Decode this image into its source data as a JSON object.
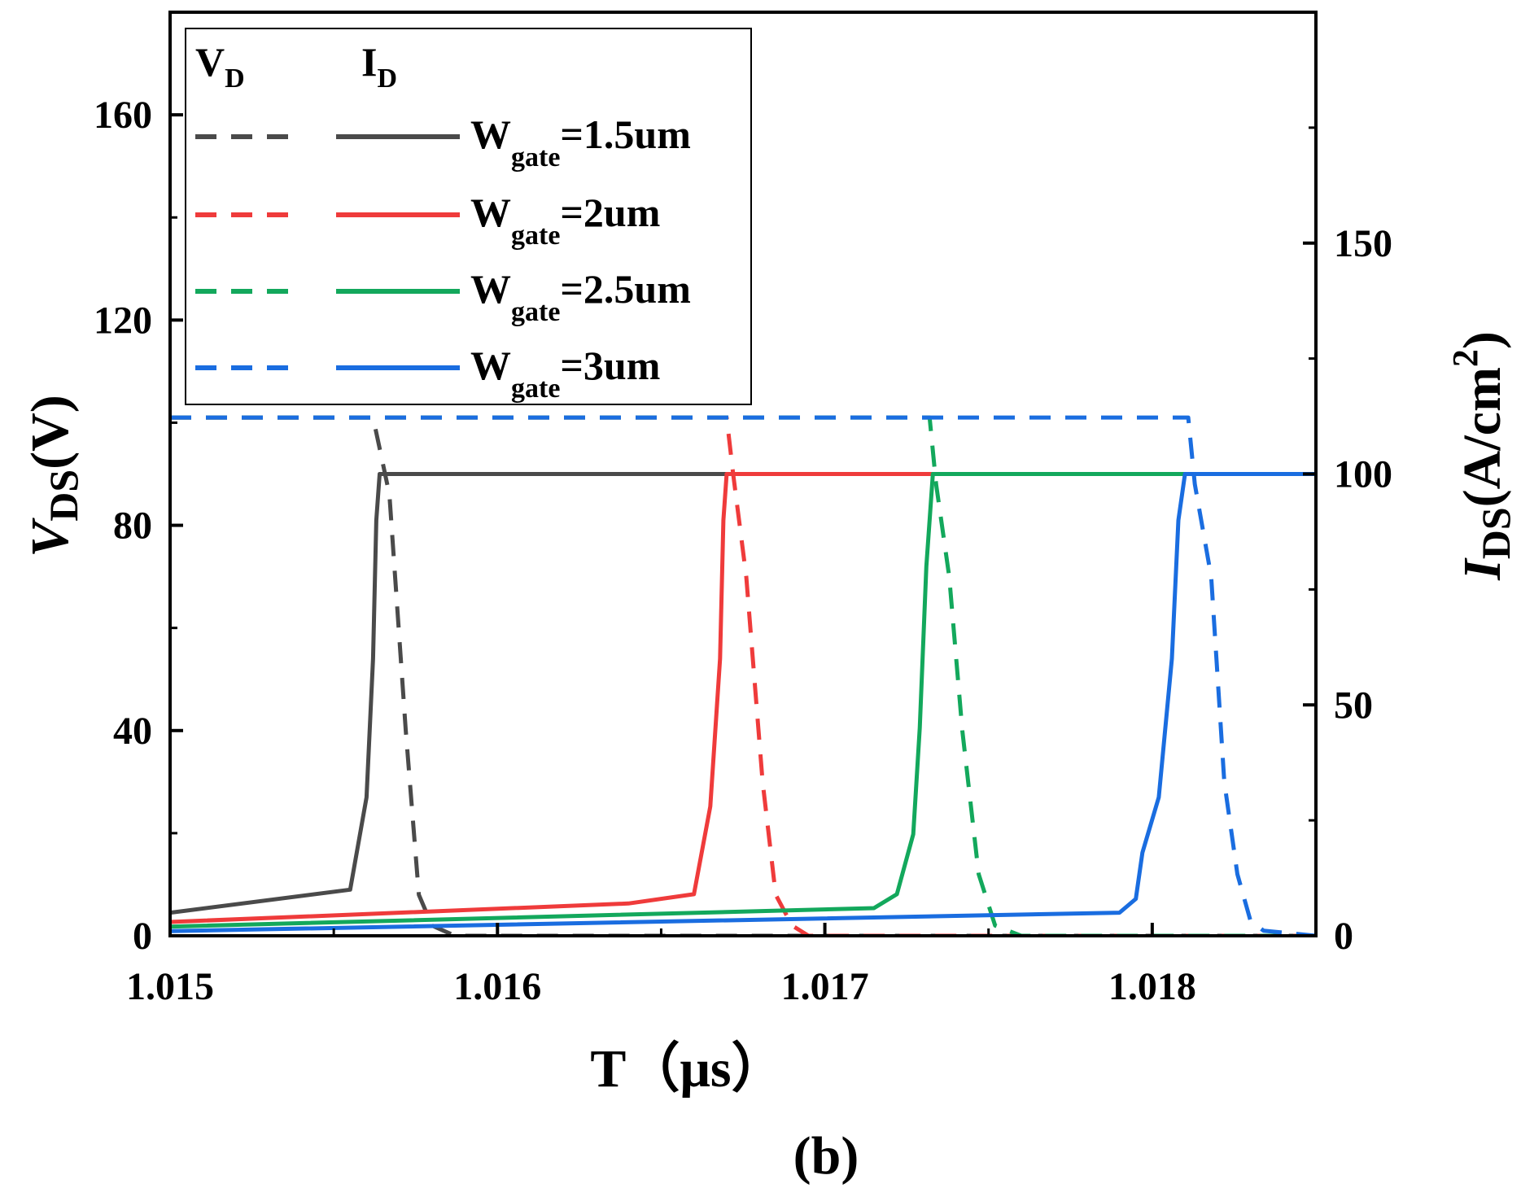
{
  "chart_data": {
    "type": "line",
    "subtitle_label": "(b)",
    "x_axis": {
      "label_main": "T",
      "label_unit": "（μs）",
      "range": [
        1.015,
        1.0185
      ],
      "ticks": [
        1.015,
        1.016,
        1.017,
        1.018
      ],
      "tick_labels": [
        "1.015",
        "1.016",
        "1.017",
        "1.018"
      ]
    },
    "y_left": {
      "label_italic": "V",
      "label_sub": "DS",
      "label_unit": "(V)",
      "range": [
        0,
        180
      ],
      "ticks": [
        0,
        40,
        80,
        120,
        160
      ],
      "tick_labels": [
        "0",
        "40",
        "80",
        "120",
        "160"
      ]
    },
    "y_right": {
      "label_italic": "I",
      "label_sub": "DS",
      "label_unit": "(A/cm",
      "label_sup": "2",
      "label_close": ")",
      "range": [
        0,
        200
      ],
      "ticks": [
        0,
        50,
        100,
        150
      ],
      "tick_labels": [
        "0",
        "50",
        "100",
        "150"
      ]
    },
    "legend": {
      "header_vd_main": "V",
      "header_vd_sub": "D",
      "header_id_main": "I",
      "header_id_sub": "D",
      "placement": "top-left"
    },
    "series": [
      {
        "name": "W_gate=1.5um",
        "label_main": "W",
        "label_sub": "gate",
        "label_rest": "=1.5um",
        "color": "#4a4a4a",
        "vd": [
          [
            1.015,
            101
          ],
          [
            1.01562,
            101
          ],
          [
            1.01564,
            95
          ],
          [
            1.01567,
            86
          ],
          [
            1.01572,
            40
          ],
          [
            1.01576,
            8
          ],
          [
            1.0158,
            2
          ],
          [
            1.01587,
            0
          ],
          [
            1.0185,
            0
          ]
        ],
        "id": [
          [
            1.015,
            5
          ],
          [
            1.01555,
            10
          ],
          [
            1.0156,
            30
          ],
          [
            1.01562,
            60
          ],
          [
            1.01563,
            90
          ],
          [
            1.01564,
            100
          ],
          [
            1.0185,
            100
          ]
        ]
      },
      {
        "name": "W_gate=2um",
        "label_main": "W",
        "label_sub": "gate",
        "label_rest": "=2um",
        "color": "#ef3b3b",
        "vd": [
          [
            1.015,
            101
          ],
          [
            1.0167,
            101
          ],
          [
            1.01672,
            90
          ],
          [
            1.01676,
            70
          ],
          [
            1.01681,
            30
          ],
          [
            1.01685,
            8
          ],
          [
            1.0169,
            2
          ],
          [
            1.01695,
            0
          ],
          [
            1.0185,
            0
          ]
        ],
        "id": [
          [
            1.015,
            3
          ],
          [
            1.0164,
            7
          ],
          [
            1.0166,
            9
          ],
          [
            1.01665,
            28
          ],
          [
            1.01668,
            60
          ],
          [
            1.01669,
            90
          ],
          [
            1.0167,
            100
          ],
          [
            1.0185,
            100
          ]
        ]
      },
      {
        "name": "W_gate=2.5um",
        "label_main": "W",
        "label_sub": "gate",
        "label_rest": "=2.5um",
        "color": "#13a85c",
        "vd": [
          [
            1.015,
            101
          ],
          [
            1.01732,
            101
          ],
          [
            1.01734,
            88
          ],
          [
            1.01738,
            70
          ],
          [
            1.01742,
            40
          ],
          [
            1.01747,
            12
          ],
          [
            1.01752,
            2
          ],
          [
            1.0176,
            0
          ],
          [
            1.0185,
            0
          ]
        ],
        "id": [
          [
            1.015,
            2
          ],
          [
            1.01715,
            6
          ],
          [
            1.01722,
            9
          ],
          [
            1.01727,
            22
          ],
          [
            1.01729,
            45
          ],
          [
            1.01731,
            80
          ],
          [
            1.01733,
            100
          ],
          [
            1.0185,
            100
          ]
        ]
      },
      {
        "name": "W_gate=3um",
        "label_main": "W",
        "label_sub": "gate",
        "label_rest": "=3um",
        "color": "#1a6de0",
        "vd": [
          [
            1.015,
            101
          ],
          [
            1.01811,
            101
          ],
          [
            1.01813,
            88
          ],
          [
            1.01818,
            70
          ],
          [
            1.01822,
            30
          ],
          [
            1.01826,
            12
          ],
          [
            1.0183,
            3
          ],
          [
            1.01834,
            1
          ],
          [
            1.0185,
            0
          ]
        ],
        "id": [
          [
            1.015,
            1
          ],
          [
            1.0179,
            5
          ],
          [
            1.01795,
            8
          ],
          [
            1.01797,
            18
          ],
          [
            1.01802,
            30
          ],
          [
            1.01806,
            60
          ],
          [
            1.01808,
            90
          ],
          [
            1.0181,
            100
          ],
          [
            1.0185,
            100
          ]
        ]
      }
    ]
  }
}
